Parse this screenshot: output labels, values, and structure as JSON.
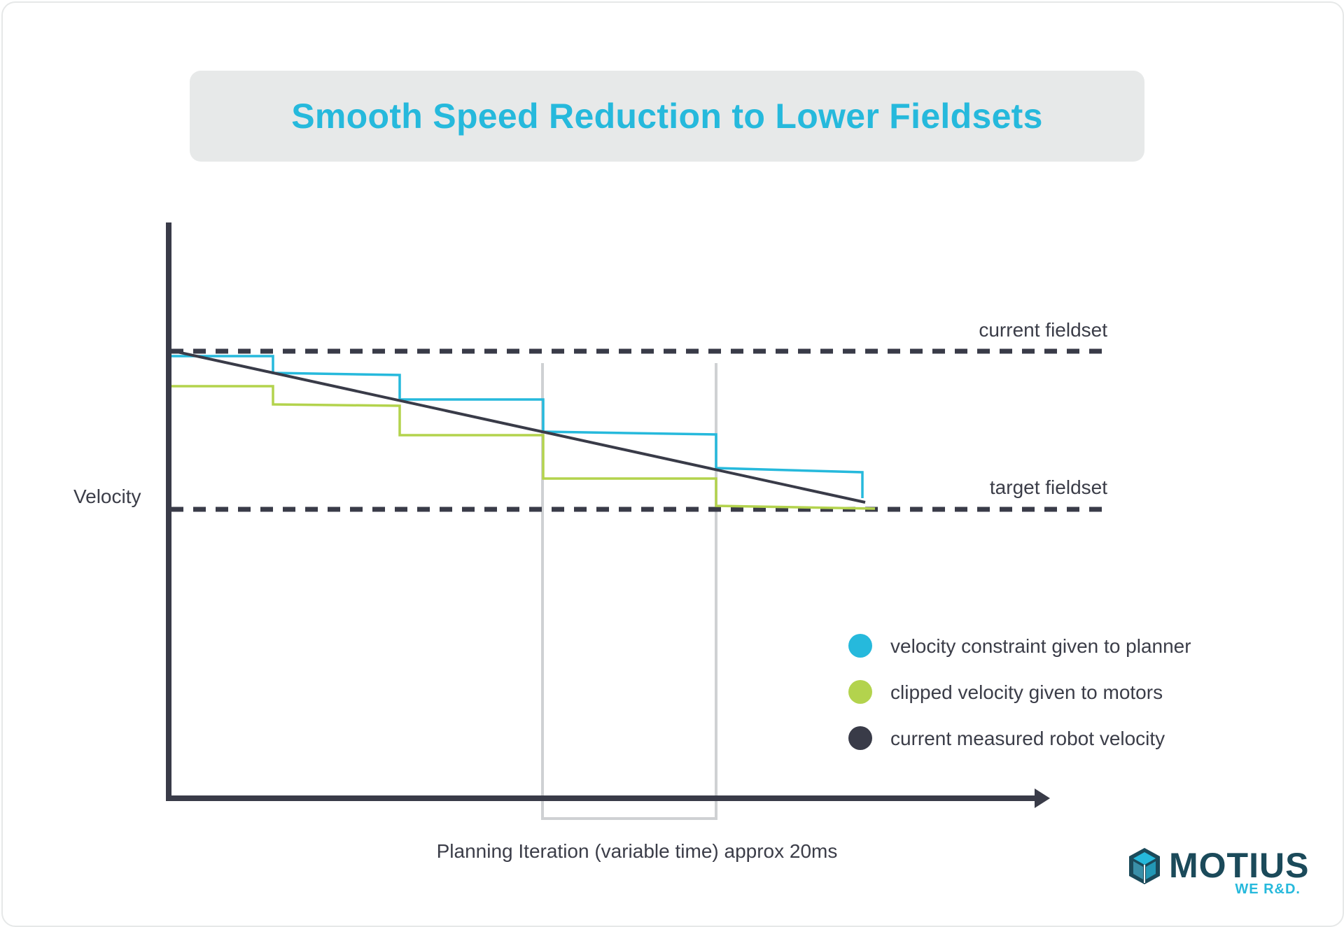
{
  "title": "Smooth Speed Reduction to Lower Fieldsets",
  "labels": {
    "current_fieldset": "current fieldset",
    "target_fieldset": "target fieldset",
    "y_axis": "Velocity",
    "x_axis": "Planning Iteration (variable time) approx 20ms"
  },
  "legend": [
    {
      "label": "velocity constraint given to planner",
      "color": "#26b9dc"
    },
    {
      "label": "clipped velocity given to motors",
      "color": "#b3d34d"
    },
    {
      "label": "current measured robot velocity",
      "color": "#393b48"
    }
  ],
  "colors": {
    "constraint": "#26b9dc",
    "clipped": "#b3d34d",
    "measured": "#393b48",
    "axis": "#393b48",
    "bracket": "#cfd1d3",
    "title": "#26b9dc"
  },
  "logo": {
    "word": "MOTIUS",
    "tagline": "WE R&D."
  }
}
